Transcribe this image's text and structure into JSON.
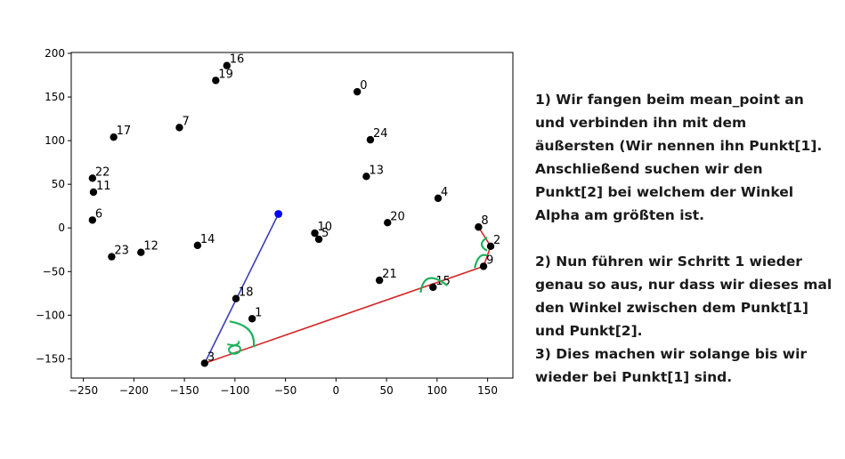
{
  "chart_data": {
    "type": "scatter",
    "title": "",
    "xlabel": "",
    "ylabel": "",
    "xlim": [
      -262,
      175
    ],
    "ylim": [
      -172,
      201
    ],
    "xticks": [
      -250,
      -200,
      -150,
      -100,
      -50,
      0,
      50,
      100,
      150
    ],
    "yticks": [
      -150,
      -100,
      -50,
      0,
      50,
      100,
      150,
      200
    ],
    "xtick_labels": [
      "−250",
      "−200",
      "−150",
      "−100",
      "−50",
      "0",
      "50",
      "100",
      "150"
    ],
    "ytick_labels": [
      "−150",
      "−100",
      "−50",
      "0",
      "50",
      "100",
      "150",
      "200"
    ],
    "grid": false,
    "points": [
      {
        "label": "0",
        "x": 21,
        "y": 156
      },
      {
        "label": "1",
        "x": -83,
        "y": -104
      },
      {
        "label": "2",
        "x": 153,
        "y": -21
      },
      {
        "label": "3",
        "x": -130,
        "y": -155
      },
      {
        "label": "4",
        "x": 101,
        "y": 34
      },
      {
        "label": "5",
        "x": -17,
        "y": -13
      },
      {
        "label": "6",
        "x": -241,
        "y": 9
      },
      {
        "label": "7",
        "x": -155,
        "y": 115
      },
      {
        "label": "8",
        "x": 141,
        "y": 1
      },
      {
        "label": "9",
        "x": 146,
        "y": -44
      },
      {
        "label": "10",
        "x": -21,
        "y": -6
      },
      {
        "label": "11",
        "x": -240,
        "y": 41
      },
      {
        "label": "12",
        "x": -193,
        "y": -28
      },
      {
        "label": "13",
        "x": 30,
        "y": 59
      },
      {
        "label": "14",
        "x": -137,
        "y": -20
      },
      {
        "label": "15",
        "x": 96,
        "y": -68
      },
      {
        "label": "16",
        "x": -108,
        "y": 186
      },
      {
        "label": "17",
        "x": -220,
        "y": 104
      },
      {
        "label": "18",
        "x": -99,
        "y": -81
      },
      {
        "label": "19",
        "x": -119,
        "y": 169
      },
      {
        "label": "20",
        "x": 51,
        "y": 6
      },
      {
        "label": "21",
        "x": 43,
        "y": -60
      },
      {
        "label": "22",
        "x": -241,
        "y": 57
      },
      {
        "label": "23",
        "x": -222,
        "y": -33
      },
      {
        "label": "24",
        "x": 34,
        "y": 101
      }
    ],
    "mean_point": {
      "x": -57,
      "y": 16
    },
    "colors": {
      "points": "#000000",
      "mean_point": "#0000ff",
      "mean_line": "#3a3fb8",
      "hull_line": "#d62728",
      "angle_marks": "#1db35b"
    },
    "mean_line": [
      {
        "x": -130,
        "y": -155
      },
      {
        "x": -57,
        "y": 16
      }
    ],
    "hull_path": [
      {
        "x": -130,
        "y": -155
      },
      {
        "x": 146,
        "y": -44
      },
      {
        "x": 153,
        "y": -21
      },
      {
        "x": 141,
        "y": 1
      }
    ],
    "annotation": "α"
  },
  "explanation": {
    "step1": [
      "1) Wir fangen beim mean_point an",
      "und verbinden ihn mit dem",
      "äußersten (Wir nennen ihn Punkt[1].",
      "Anschließend suchen wir den",
      "Punkt[2] bei welchem der Winkel",
      "Alpha am größten ist."
    ],
    "step2": [
      "2) Nun führen wir Schritt 1 wieder",
      "genau so aus, nur dass wir dieses mal",
      "den Winkel zwischen dem Punkt[1]",
      "und Punkt[2]."
    ],
    "step3": [
      "3) Dies machen wir solange bis wir",
      "wieder bei Punkt[1] sind."
    ]
  }
}
